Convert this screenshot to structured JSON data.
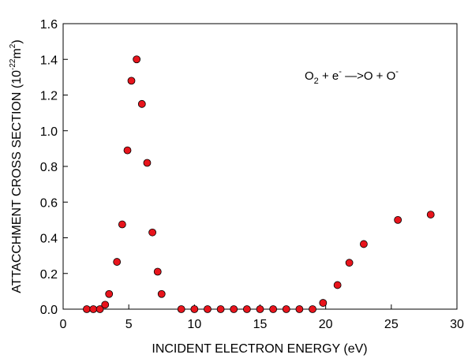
{
  "chart_data": {
    "type": "scatter",
    "title": "",
    "xlabel": "INCIDENT ELECTRON ENERGY (eV)",
    "ylabel_main": "ATTACCHMENT CROSS SECTION (10",
    "ylabel_exp": "-22",
    "ylabel_unit": "m",
    "ylabel_unit_exp": "2",
    "ylabel_close": ")",
    "xlim": [
      0,
      30
    ],
    "ylim": [
      0,
      1.6
    ],
    "xticks": [
      0,
      5,
      10,
      15,
      20,
      25,
      30
    ],
    "xtick_labels": [
      "0",
      "5",
      "10",
      "15",
      "20",
      "25",
      "30"
    ],
    "yticks": [
      0.0,
      0.2,
      0.4,
      0.6,
      0.8,
      1.0,
      1.2,
      1.4,
      1.6
    ],
    "ytick_labels": [
      "0.0",
      "0.2",
      "0.4",
      "0.6",
      "0.8",
      "1.0",
      "1.2",
      "1.4",
      "1.6"
    ],
    "grid": false,
    "legend": "none",
    "marker_color": "#e8141c",
    "marker_edge": "#000000",
    "annotation": {
      "o": "O",
      "sub2": "2",
      "plus": " + e",
      "sup_minus": "-",
      "arrow": " —>O + O",
      "sup_minus2": "-"
    },
    "series": [
      {
        "x": [
          1.8,
          2.3,
          2.8,
          3.2,
          3.5,
          4.1,
          4.5,
          4.9,
          5.2,
          5.6,
          6.0,
          6.4,
          6.8,
          7.2,
          7.5,
          9.0,
          10.0,
          11.0,
          12.0,
          13.0,
          14.0,
          15.0,
          16.0,
          17.0,
          18.0,
          19.0,
          19.8,
          20.9,
          21.8,
          22.9,
          25.5,
          28.0
        ],
        "y": [
          0.0,
          0.0,
          0.0,
          0.025,
          0.085,
          0.265,
          0.475,
          0.89,
          1.28,
          1.4,
          1.15,
          0.82,
          0.43,
          0.21,
          0.085,
          0.0,
          0.0,
          0.0,
          0.0,
          0.0,
          0.0,
          0.0,
          0.0,
          0.0,
          0.0,
          0.0,
          0.035,
          0.135,
          0.26,
          0.365,
          0.5,
          0.53
        ]
      }
    ]
  }
}
